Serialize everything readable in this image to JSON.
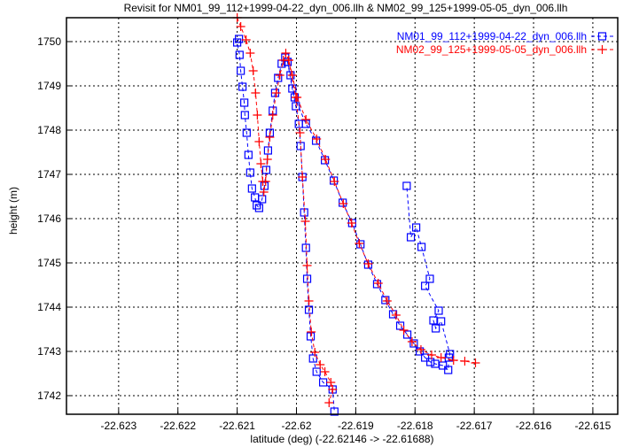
{
  "chart_data": {
    "type": "line",
    "title": "Revisit for NM01_99_112+1999-04-22_dyn_006.llh & NM02_99_125+1999-05-05_dyn_006.llh",
    "xlabel": "latitude (deg) (-22.62146 -> -22.61688)",
    "ylabel": "height (m)",
    "xlim": [
      -22.62388,
      -22.61458
    ],
    "ylim": [
      1741.58,
      1750.54
    ],
    "grid": true,
    "legend_position": "top-right",
    "xticks": [
      -22.623,
      -22.622,
      -22.621,
      -22.62,
      -22.619,
      -22.618,
      -22.617,
      -22.616,
      -22.615
    ],
    "xtick_labels": [
      "-22.623",
      "-22.622",
      "-22.621",
      "-22.62",
      "-22.619",
      "-22.618",
      "-22.617",
      "-22.616",
      "-22.615"
    ],
    "yticks": [
      1742,
      1743,
      1744,
      1745,
      1746,
      1747,
      1748,
      1749,
      1750
    ],
    "ytick_labels": [
      "1742",
      "1743",
      "1744",
      "1745",
      "1746",
      "1747",
      "1748",
      "1749",
      "1750"
    ],
    "series": [
      {
        "name": "NM01_99_112+1999-04-22_dyn_006.llh",
        "color": "#0000ff",
        "marker": "square",
        "segments": [
          [
            [
              -22.62097,
              1750.06
            ],
            [
              -22.621,
              1749.98
            ],
            [
              -22.62096,
              1749.7
            ],
            [
              -22.62094,
              1749.34
            ],
            [
              -22.62091,
              1748.98
            ],
            [
              -22.62088,
              1748.62
            ],
            [
              -22.62087,
              1748.34
            ],
            [
              -22.62084,
              1747.94
            ],
            [
              -22.62081,
              1747.44
            ],
            [
              -22.62078,
              1747.04
            ],
            [
              -22.62075,
              1746.68
            ],
            [
              -22.6207,
              1746.48
            ],
            [
              -22.62067,
              1746.3
            ],
            [
              -22.62063,
              1746.24
            ],
            [
              -22.62058,
              1746.44
            ],
            [
              -22.62054,
              1746.74
            ],
            [
              -22.62051,
              1747.1
            ],
            [
              -22.62048,
              1747.54
            ],
            [
              -22.62045,
              1747.94
            ],
            [
              -22.6204,
              1748.44
            ],
            [
              -22.62036,
              1748.84
            ],
            [
              -22.62031,
              1749.18
            ],
            [
              -22.62025,
              1749.5
            ],
            [
              -22.62019,
              1749.64
            ],
            [
              -22.62015,
              1749.54
            ],
            [
              -22.6201,
              1749.24
            ],
            [
              -22.62003,
              1748.74
            ],
            [
              -22.61984,
              1748.14
            ],
            [
              -22.61967,
              1747.76
            ],
            [
              -22.61952,
              1747.32
            ],
            [
              -22.61937,
              1746.86
            ],
            [
              -22.61922,
              1746.36
            ],
            [
              -22.61906,
              1745.9
            ],
            [
              -22.61892,
              1745.42
            ],
            [
              -22.61879,
              1744.96
            ],
            [
              -22.61864,
              1744.52
            ],
            [
              -22.6185,
              1744.16
            ],
            [
              -22.61837,
              1743.84
            ],
            [
              -22.61825,
              1743.58
            ],
            [
              -22.61813,
              1743.38
            ],
            [
              -22.61802,
              1743.18
            ],
            [
              -22.61792,
              1743.0
            ],
            [
              -22.61783,
              1742.86
            ],
            [
              -22.61774,
              1742.76
            ],
            [
              -22.61766,
              1742.72
            ],
            [
              -22.61753,
              1742.68
            ],
            [
              -22.61744,
              1742.58
            ],
            [
              -22.61743,
              1742.86
            ],
            [
              -22.61741,
              1742.94
            ],
            [
              -22.61756,
              1743.68
            ],
            [
              -22.61765,
              1743.52
            ],
            [
              -22.61769,
              1743.7
            ],
            [
              -22.6176,
              1743.92
            ],
            [
              -22.61783,
              1744.48
            ],
            [
              -22.61775,
              1744.64
            ],
            [
              -22.61789,
              1745.36
            ],
            [
              -22.61798,
              1745.8
            ],
            [
              -22.61807,
              1745.58
            ],
            [
              -22.61814,
              1746.74
            ]
          ],
          [
            [
              -22.62015,
              1749.54
            ],
            [
              -22.62007,
              1748.94
            ],
            [
              -22.62001,
              1748.54
            ],
            [
              -22.61996,
              1748.14
            ],
            [
              -22.61993,
              1747.64
            ],
            [
              -22.6199,
              1746.94
            ],
            [
              -22.61987,
              1746.14
            ],
            [
              -22.61984,
              1745.34
            ],
            [
              -22.61982,
              1744.64
            ],
            [
              -22.61979,
              1743.94
            ],
            [
              -22.61976,
              1743.34
            ],
            [
              -22.61972,
              1742.84
            ],
            [
              -22.61966,
              1742.54
            ],
            [
              -22.61955,
              1742.3
            ],
            [
              -22.61939,
              1742.14
            ],
            [
              -22.61936,
              1741.64
            ]
          ]
        ]
      },
      {
        "name": "NM02_99_125+1999-05-05_dyn_006.llh",
        "color": "#ff0000",
        "marker": "plus",
        "segments": [
          [
            [
              -22.621,
              1750.54
            ],
            [
              -22.62094,
              1750.34
            ],
            [
              -22.62085,
              1750.04
            ],
            [
              -22.62078,
              1749.74
            ],
            [
              -22.62073,
              1749.34
            ],
            [
              -22.62069,
              1748.84
            ],
            [
              -22.62066,
              1748.34
            ],
            [
              -22.62063,
              1747.74
            ],
            [
              -22.6206,
              1747.24
            ],
            [
              -22.62057,
              1746.84
            ],
            [
              -22.62055,
              1746.6
            ],
            [
              -22.62052,
              1746.84
            ],
            [
              -22.62049,
              1747.34
            ],
            [
              -22.62045,
              1747.84
            ],
            [
              -22.6204,
              1748.34
            ],
            [
              -22.62034,
              1748.84
            ],
            [
              -22.62028,
              1749.24
            ],
            [
              -22.62022,
              1749.58
            ],
            [
              -22.62018,
              1749.74
            ],
            [
              -22.62013,
              1749.58
            ],
            [
              -22.62007,
              1749.24
            ],
            [
              -22.61999,
              1748.74
            ],
            [
              -22.61984,
              1748.24
            ],
            [
              -22.61966,
              1747.8
            ],
            [
              -22.61951,
              1747.34
            ],
            [
              -22.61936,
              1746.84
            ],
            [
              -22.61921,
              1746.34
            ],
            [
              -22.61907,
              1745.9
            ],
            [
              -22.61894,
              1745.44
            ],
            [
              -22.61879,
              1744.98
            ],
            [
              -22.61862,
              1744.54
            ],
            [
              -22.61847,
              1744.14
            ],
            [
              -22.61832,
              1743.82
            ],
            [
              -22.61819,
              1743.48
            ],
            [
              -22.61805,
              1743.22
            ],
            [
              -22.6179,
              1743.04
            ],
            [
              -22.61772,
              1742.92
            ],
            [
              -22.61756,
              1742.86
            ],
            [
              -22.61735,
              1742.8
            ],
            [
              -22.61716,
              1742.78
            ],
            [
              -22.61698,
              1742.74
            ]
          ],
          [
            [
              -22.62013,
              1749.58
            ],
            [
              -22.62001,
              1748.74
            ],
            [
              -22.61994,
              1747.94
            ],
            [
              -22.6199,
              1746.94
            ],
            [
              -22.61985,
              1745.94
            ],
            [
              -22.61982,
              1744.94
            ],
            [
              -22.61979,
              1744.14
            ],
            [
              -22.61975,
              1743.44
            ],
            [
              -22.61969,
              1742.98
            ],
            [
              -22.6196,
              1742.7
            ],
            [
              -22.61952,
              1742.54
            ],
            [
              -22.61942,
              1742.3
            ],
            [
              -22.61939,
              1742.14
            ],
            [
              -22.61945,
              1741.84
            ]
          ]
        ]
      }
    ]
  }
}
